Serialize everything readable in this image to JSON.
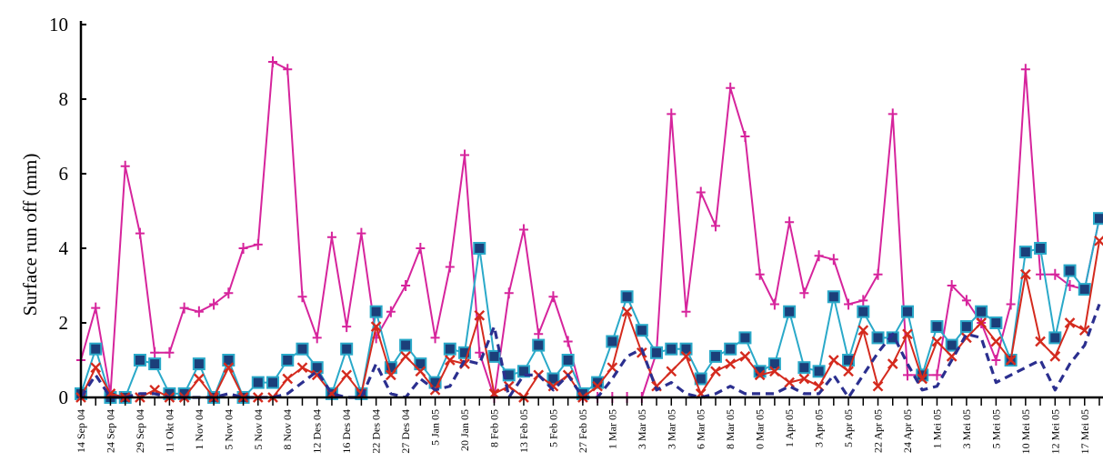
{
  "chart_data": {
    "type": "line",
    "title": "",
    "xlabel": "",
    "ylabel": "Surface run off (mm)",
    "ylim": [
      0,
      10
    ],
    "yticks": [
      0,
      2,
      4,
      6,
      8,
      10
    ],
    "grid": false,
    "legend": "none",
    "x_tick_labels": [
      "14 Sep 04",
      "24 Sep 04",
      "29 Sep 04",
      "11 Okt 04",
      "1 Nov 04",
      "5 Nov 04",
      "5 Nov 04",
      "8 Nov 04",
      "12 Des 04",
      "16 Des 04",
      "22 Des 04",
      "27 Des 04",
      "5 Jan 05",
      "20 Jan 05",
      "8 Feb 05",
      "13 Feb 05",
      "5 Feb 05",
      "27 Feb 05",
      "1 Mar 05",
      "3 Mar 05",
      "3 Mar 05",
      "6 Mar 05",
      "8 Mar 05",
      "0 Mar 05",
      "1 Apr 05",
      "3 Apr 05",
      "5 Apr 05",
      "22 Apr 05",
      "24 Apr 05",
      "1 Mei 05",
      "3 Mei 05",
      "5 Mei 05",
      "10 Mei 05",
      "12 Mei 05",
      "17 Mei 05"
    ],
    "n_points": 70,
    "series": [
      {
        "color": "#d6249c",
        "marker": "plus",
        "dash": "solid",
        "values": [
          1.0,
          2.4,
          0.1,
          6.2,
          4.4,
          1.2,
          1.2,
          2.4,
          2.3,
          2.5,
          2.8,
          4.0,
          4.1,
          9.0,
          8.8,
          2.7,
          1.6,
          4.3,
          1.9,
          4.4,
          1.6,
          2.3,
          3.0,
          4.0,
          1.6,
          3.5,
          6.5,
          1.2,
          0.0,
          2.8,
          4.5,
          1.7,
          2.7,
          1.5,
          0.0,
          0.0,
          0.0,
          0.0,
          0.0,
          1.2,
          7.6,
          2.3,
          5.5,
          4.6,
          8.3,
          7.0,
          3.3,
          2.5,
          4.7,
          2.8,
          3.8,
          3.7,
          2.5,
          2.6,
          3.3,
          7.6,
          0.6,
          0.6,
          0.6,
          3.0,
          2.6,
          2.0,
          1.0,
          2.5,
          8.8,
          3.3,
          3.3,
          3.0,
          2.9,
          4.8
        ]
      },
      {
        "color": "#2aa9c9",
        "marker": "square",
        "dash": "solid",
        "values": [
          0.1,
          1.3,
          0.0,
          0.0,
          1.0,
          0.9,
          0.1,
          0.1,
          0.9,
          0.0,
          1.0,
          0.0,
          0.4,
          0.4,
          1.0,
          1.3,
          0.8,
          0.1,
          1.3,
          0.1,
          2.3,
          0.8,
          1.4,
          0.9,
          0.4,
          1.3,
          1.2,
          4.0,
          1.1,
          0.6,
          0.7,
          1.4,
          0.5,
          1.0,
          0.1,
          0.4,
          1.5,
          2.7,
          1.8,
          1.2,
          1.3,
          1.3,
          0.5,
          1.1,
          1.3,
          1.6,
          0.7,
          0.9,
          2.3,
          0.8,
          0.7,
          2.7,
          1.0,
          2.3,
          1.6,
          1.6,
          2.3,
          0.6,
          1.9,
          1.4,
          1.9,
          2.3,
          2.0,
          1.0,
          3.9,
          4.0,
          1.6,
          3.4,
          2.9,
          4.8
        ]
      },
      {
        "color": "#d42a1e",
        "marker": "x",
        "dash": "solid",
        "values": [
          0.0,
          0.8,
          0.1,
          0.0,
          0.0,
          0.2,
          0.0,
          0.0,
          0.5,
          0.0,
          0.8,
          0.0,
          0.0,
          0.0,
          0.5,
          0.8,
          0.6,
          0.1,
          0.6,
          0.1,
          1.9,
          0.6,
          1.1,
          0.7,
          0.2,
          1.0,
          0.9,
          2.2,
          0.1,
          0.3,
          0.0,
          0.6,
          0.3,
          0.6,
          0.0,
          0.3,
          0.8,
          2.3,
          1.2,
          0.3,
          0.7,
          1.1,
          0.1,
          0.7,
          0.9,
          1.1,
          0.6,
          0.7,
          0.4,
          0.5,
          0.3,
          1.0,
          0.7,
          1.8,
          0.3,
          0.9,
          1.7,
          0.5,
          1.5,
          1.1,
          1.6,
          2.0,
          1.5,
          1.0,
          3.3,
          1.5,
          1.1,
          2.0,
          1.8,
          4.2
        ]
      },
      {
        "color": "#2b2f8f",
        "marker": "none",
        "dash": "dashed",
        "values": [
          0.0,
          0.6,
          0.0,
          0.0,
          0.1,
          0.1,
          0.0,
          0.0,
          0.0,
          0.0,
          0.1,
          0.0,
          0.0,
          0.0,
          0.1,
          0.4,
          0.7,
          0.1,
          0.0,
          0.0,
          0.9,
          0.1,
          0.0,
          0.5,
          0.2,
          0.3,
          1.0,
          0.9,
          1.9,
          0.0,
          0.6,
          0.6,
          0.2,
          0.6,
          0.0,
          0.0,
          0.5,
          1.1,
          1.3,
          0.2,
          0.4,
          0.1,
          0.0,
          0.1,
          0.3,
          0.1,
          0.1,
          0.1,
          0.3,
          0.1,
          0.1,
          0.6,
          0.0,
          0.6,
          1.2,
          1.7,
          0.9,
          0.2,
          0.3,
          1.0,
          1.7,
          1.6,
          0.4,
          0.6,
          0.8,
          1.0,
          0.2,
          0.9,
          1.4,
          2.5
        ]
      }
    ]
  }
}
